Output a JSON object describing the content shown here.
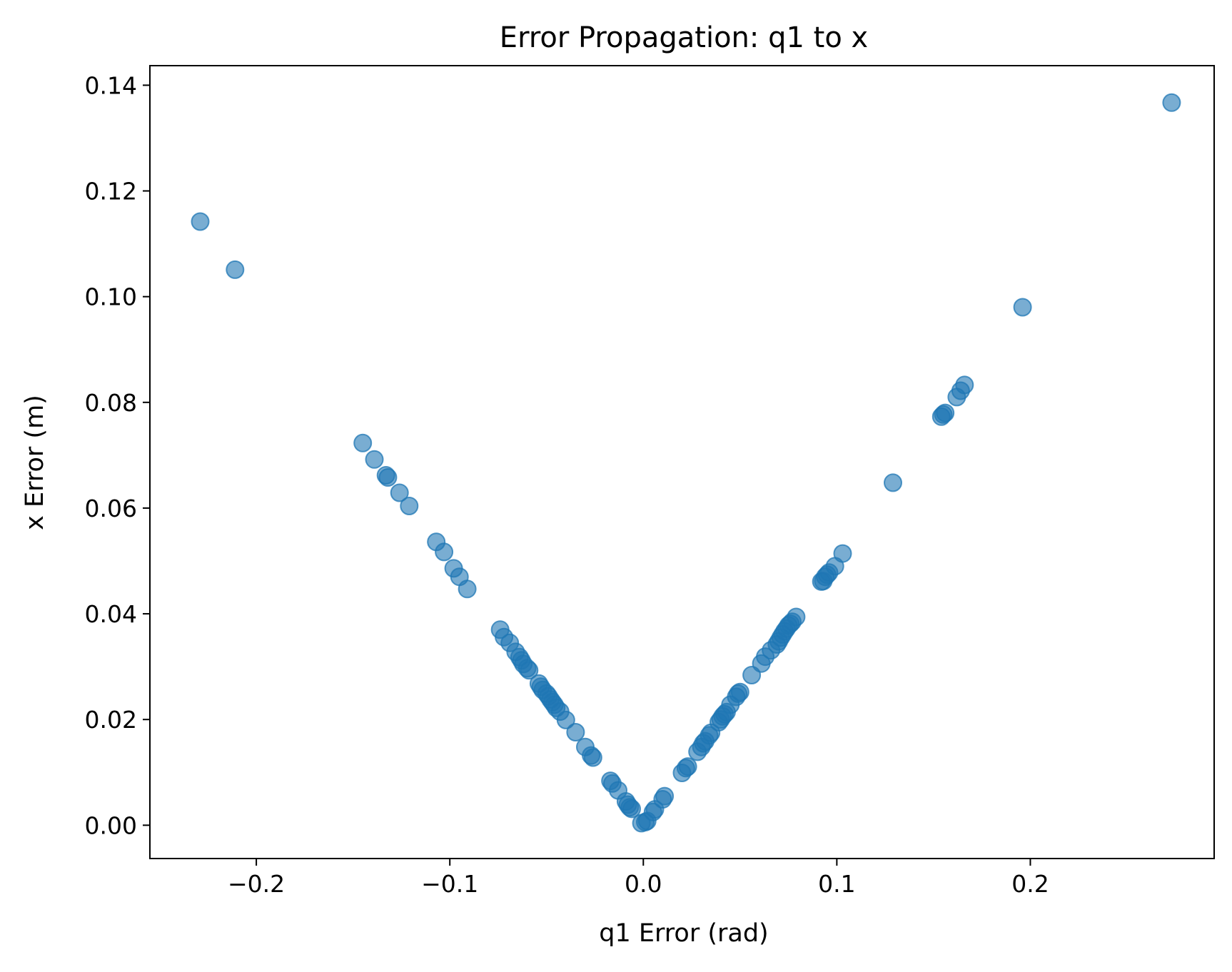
{
  "chart_data": {
    "type": "scatter",
    "title": "Error Propagation: q1 to x",
    "xlabel": "q1 Error (rad)",
    "ylabel": "x Error (m)",
    "xlim": [
      -0.255,
      0.295
    ],
    "ylim": [
      -0.0063,
      0.1437
    ],
    "x_ticks": [
      -0.2,
      -0.1,
      0.0,
      0.1,
      0.2
    ],
    "x_tick_labels": [
      "−0.2",
      "−0.1",
      "0.0",
      "0.1",
      "0.2"
    ],
    "y_ticks": [
      0.0,
      0.02,
      0.04,
      0.06,
      0.08,
      0.1,
      0.12,
      0.14
    ],
    "y_tick_labels": [
      "0.00",
      "0.02",
      "0.04",
      "0.06",
      "0.08",
      "0.10",
      "0.12",
      "0.14"
    ],
    "grid": false,
    "marker_color": "#1f77b4",
    "marker_alpha": 0.6,
    "series": [
      {
        "points": [
          [
            -0.229,
            0.1142
          ],
          [
            -0.211,
            0.1051
          ],
          [
            -0.145,
            0.0723
          ],
          [
            -0.139,
            0.0692
          ],
          [
            -0.133,
            0.0662
          ],
          [
            -0.132,
            0.0658
          ],
          [
            -0.126,
            0.0629
          ],
          [
            -0.121,
            0.0604
          ],
          [
            -0.107,
            0.0536
          ],
          [
            -0.103,
            0.0517
          ],
          [
            -0.098,
            0.0486
          ],
          [
            -0.095,
            0.047
          ],
          [
            -0.091,
            0.0447
          ],
          [
            -0.074,
            0.037
          ],
          [
            -0.072,
            0.0356
          ],
          [
            -0.069,
            0.0345
          ],
          [
            -0.066,
            0.0328
          ],
          [
            -0.064,
            0.0318
          ],
          [
            -0.063,
            0.0312
          ],
          [
            -0.062,
            0.0305
          ],
          [
            -0.06,
            0.0297
          ],
          [
            -0.059,
            0.0293
          ],
          [
            -0.054,
            0.0268
          ],
          [
            -0.053,
            0.0262
          ],
          [
            -0.052,
            0.0256
          ],
          [
            -0.05,
            0.0249
          ],
          [
            -0.049,
            0.0244
          ],
          [
            -0.048,
            0.0238
          ],
          [
            -0.047,
            0.0233
          ],
          [
            -0.046,
            0.0228
          ],
          [
            -0.045,
            0.0222
          ],
          [
            -0.043,
            0.0215
          ],
          [
            -0.04,
            0.0199
          ],
          [
            -0.035,
            0.0176
          ],
          [
            -0.03,
            0.0148
          ],
          [
            -0.027,
            0.0132
          ],
          [
            -0.026,
            0.0128
          ],
          [
            -0.017,
            0.0084
          ],
          [
            -0.016,
            0.0079
          ],
          [
            -0.013,
            0.0066
          ],
          [
            -0.009,
            0.0045
          ],
          [
            -0.008,
            0.0039
          ],
          [
            -0.007,
            0.0034
          ],
          [
            -0.006,
            0.0031
          ],
          [
            -0.001,
            0.0004
          ],
          [
            0.001,
            0.0006
          ],
          [
            0.002,
            0.0008
          ],
          [
            0.005,
            0.0025
          ],
          [
            0.006,
            0.003
          ],
          [
            0.01,
            0.0049
          ],
          [
            0.011,
            0.0055
          ],
          [
            0.02,
            0.0099
          ],
          [
            0.022,
            0.0108
          ],
          [
            0.023,
            0.0111
          ],
          [
            0.028,
            0.0139
          ],
          [
            0.03,
            0.0148
          ],
          [
            0.031,
            0.0155
          ],
          [
            0.032,
            0.0159
          ],
          [
            0.034,
            0.017
          ],
          [
            0.035,
            0.0175
          ],
          [
            0.039,
            0.0195
          ],
          [
            0.04,
            0.02
          ],
          [
            0.041,
            0.0206
          ],
          [
            0.042,
            0.021
          ],
          [
            0.043,
            0.0214
          ],
          [
            0.045,
            0.0228
          ],
          [
            0.048,
            0.0243
          ],
          [
            0.049,
            0.0249
          ],
          [
            0.05,
            0.0252
          ],
          [
            0.056,
            0.0284
          ],
          [
            0.061,
            0.0306
          ],
          [
            0.063,
            0.0319
          ],
          [
            0.066,
            0.0331
          ],
          [
            0.069,
            0.0342
          ],
          [
            0.07,
            0.0348
          ],
          [
            0.071,
            0.0355
          ],
          [
            0.072,
            0.0361
          ],
          [
            0.073,
            0.0367
          ],
          [
            0.074,
            0.0372
          ],
          [
            0.075,
            0.0378
          ],
          [
            0.076,
            0.0381
          ],
          [
            0.077,
            0.0385
          ],
          [
            0.079,
            0.0394
          ],
          [
            0.092,
            0.0461
          ],
          [
            0.093,
            0.0462
          ],
          [
            0.094,
            0.047
          ],
          [
            0.095,
            0.0474
          ],
          [
            0.096,
            0.0478
          ],
          [
            0.099,
            0.049
          ],
          [
            0.103,
            0.0514
          ],
          [
            0.129,
            0.0648
          ],
          [
            0.154,
            0.0773
          ],
          [
            0.155,
            0.0777
          ],
          [
            0.156,
            0.078
          ],
          [
            0.162,
            0.081
          ],
          [
            0.164,
            0.0822
          ],
          [
            0.166,
            0.0833
          ],
          [
            0.196,
            0.098
          ],
          [
            0.273,
            0.1367
          ]
        ]
      }
    ]
  }
}
